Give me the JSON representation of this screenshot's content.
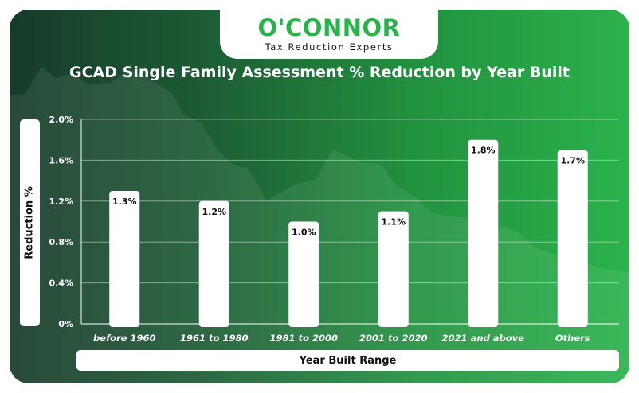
{
  "brand": {
    "name": "O'CONNOR",
    "tagline": "Tax Reduction Experts",
    "color": "#2bb24c"
  },
  "chart_data": {
    "type": "bar",
    "title": "GCAD Single Family Assessment % Reduction by Year Built",
    "xlabel": "Year Built Range",
    "ylabel": "Reduction %",
    "categories": [
      "before 1960",
      "1961 to 1980",
      "1981 to 2000",
      "2001 to 2020",
      "2021 and above",
      "Others"
    ],
    "values": [
      1.3,
      1.2,
      1.0,
      1.1,
      1.8,
      1.7
    ],
    "data_labels": [
      "1.3%",
      "1.2%",
      "1.0%",
      "1.1%",
      "1.8%",
      "1.7%"
    ],
    "yticks": [
      0,
      0.4,
      0.8,
      1.2,
      1.6,
      2.0
    ],
    "ytick_labels": [
      "0%",
      "0.4%",
      "0.8%",
      "1.2%",
      "1.6%",
      "2.0%"
    ],
    "ylim": [
      0,
      2.0
    ],
    "grid": true,
    "bar_color": "#ffffff"
  }
}
